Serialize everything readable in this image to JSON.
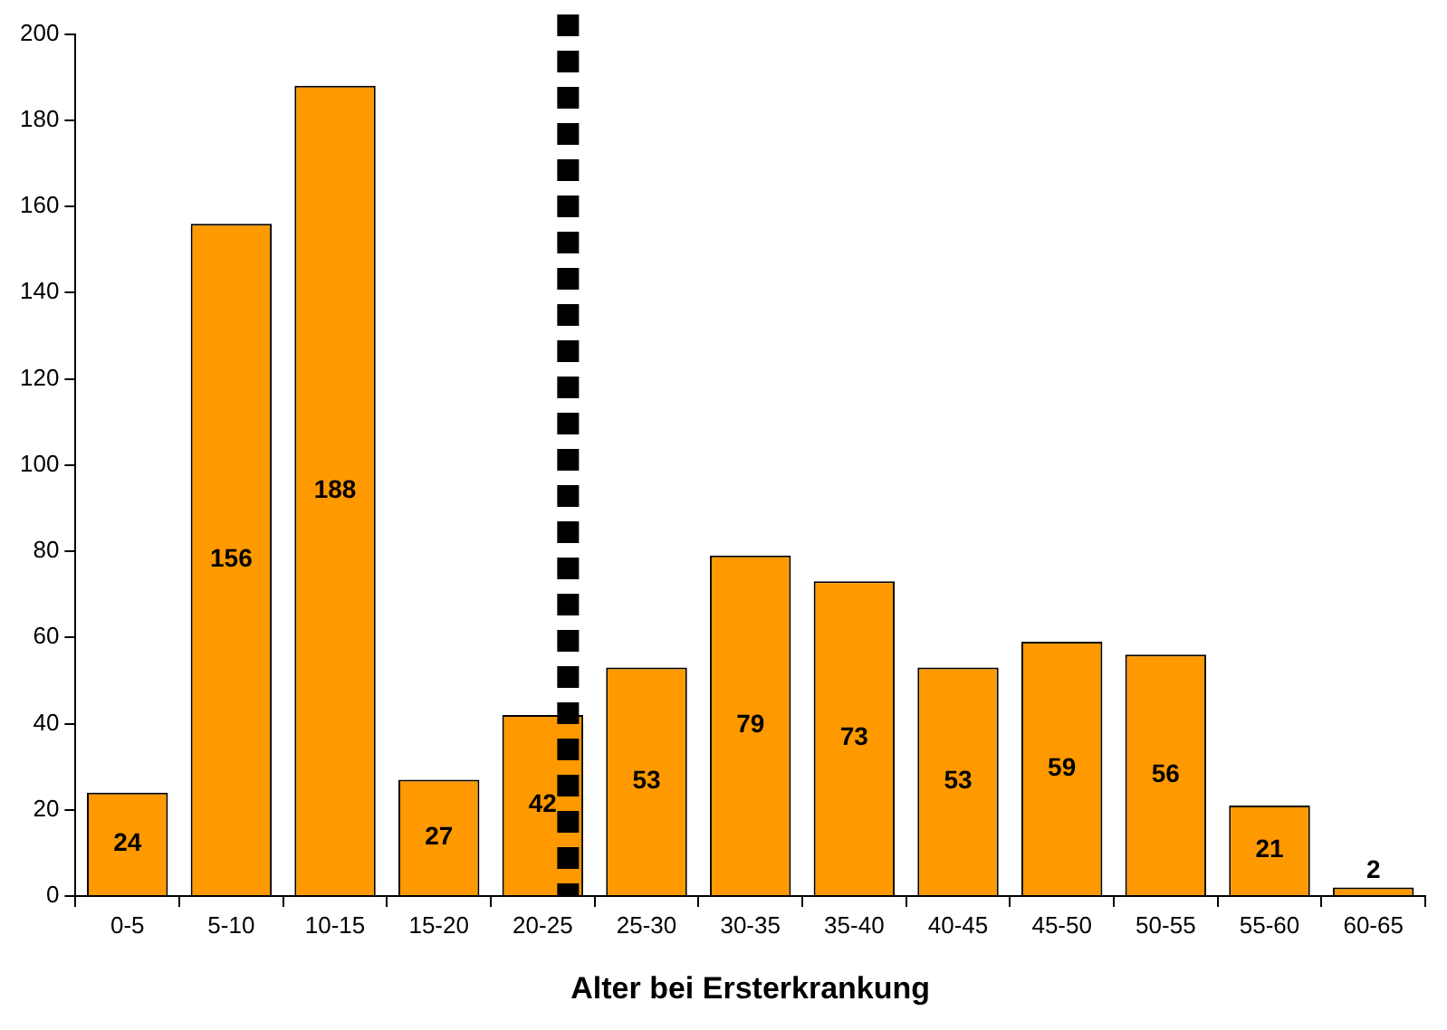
{
  "chart_data": {
    "type": "bar",
    "xlabel": "Alter bei Ersterkrankung",
    "categories": [
      "0-5",
      "5-10",
      "10-15",
      "15-20",
      "20-25",
      "25-30",
      "30-35",
      "35-40",
      "40-45",
      "45-50",
      "50-55",
      "55-60",
      "60-65"
    ],
    "values": [
      24,
      156,
      188,
      27,
      42,
      53,
      79,
      73,
      53,
      59,
      56,
      21,
      2
    ],
    "color": "#ff9900",
    "ylim": [
      0,
      200
    ],
    "yticks": [
      0,
      20,
      40,
      60,
      80,
      100,
      120,
      140,
      160,
      180,
      200
    ],
    "grid": false,
    "legend": false,
    "data_labels": true,
    "ref_lines": [
      {
        "axis": "x",
        "value": "20-25",
        "color": "#000000",
        "line_style": "dotted"
      }
    ]
  }
}
